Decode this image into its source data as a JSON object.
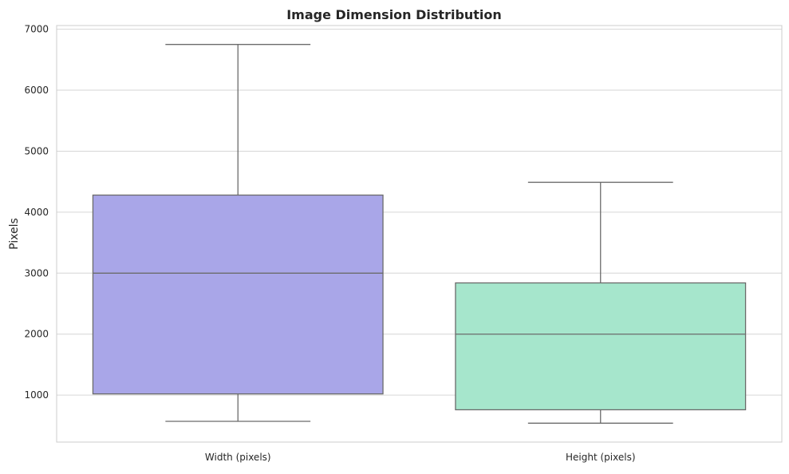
{
  "chart_data": {
    "type": "box",
    "title": "Image Dimension Distribution",
    "xlabel": "",
    "ylabel": "Pixels",
    "ylim": [
      230,
      7060
    ],
    "yticks": [
      1000,
      2000,
      3000,
      4000,
      5000,
      6000,
      7000
    ],
    "grid": "horizontal",
    "categories": [
      "Width (pixels)",
      "Height (pixels)"
    ],
    "boxes": [
      {
        "category": "Width (pixels)",
        "whisker_low": 570,
        "q1": 1020,
        "median": 3000,
        "q3": 4280,
        "whisker_high": 6750,
        "color": "#a9a6e8"
      },
      {
        "category": "Height (pixels)",
        "whisker_low": 540,
        "q1": 760,
        "median": 2000,
        "q3": 2840,
        "whisker_high": 4490,
        "color": "#a6e6cc"
      }
    ],
    "colors": {
      "line": "#6b6b6b",
      "grid": "#d6d6d6",
      "spine": "#cccccc"
    }
  }
}
